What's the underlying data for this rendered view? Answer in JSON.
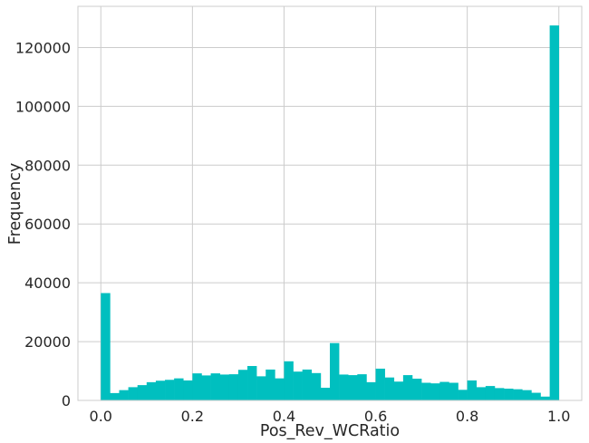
{
  "chart_data": {
    "type": "bar",
    "subtype": "histogram",
    "title": "",
    "xlabel": "Pos_Rev_WCRatio",
    "ylabel": "Frequency",
    "xlim": [
      -0.05,
      1.05
    ],
    "ylim": [
      0,
      134000
    ],
    "xticks": [
      0.0,
      0.2,
      0.4,
      0.6,
      0.8,
      1.0
    ],
    "xtick_labels": [
      "0.0",
      "0.2",
      "0.4",
      "0.6",
      "0.8",
      "1.0"
    ],
    "yticks": [
      0,
      20000,
      40000,
      60000,
      80000,
      100000,
      120000
    ],
    "ytick_labels": [
      "0",
      "20000",
      "40000",
      "60000",
      "80000",
      "100000",
      "120000"
    ],
    "grid": true,
    "bar_color": "#00BFBF",
    "bin_range": [
      0,
      1
    ],
    "bin_count": 50,
    "values": [
      36500,
      2500,
      3500,
      4500,
      5200,
      6200,
      6700,
      7000,
      7500,
      6800,
      9200,
      8500,
      9200,
      8800,
      8900,
      10400,
      11700,
      8200,
      10500,
      7500,
      13300,
      9800,
      10500,
      9300,
      4300,
      19500,
      8800,
      8600,
      8900,
      6200,
      10800,
      7800,
      6400,
      8600,
      7400,
      6000,
      5800,
      6300,
      6000,
      3600,
      6800,
      4500,
      4900,
      4200,
      4000,
      3800,
      3500,
      2600,
      1300,
      127500
    ]
  }
}
